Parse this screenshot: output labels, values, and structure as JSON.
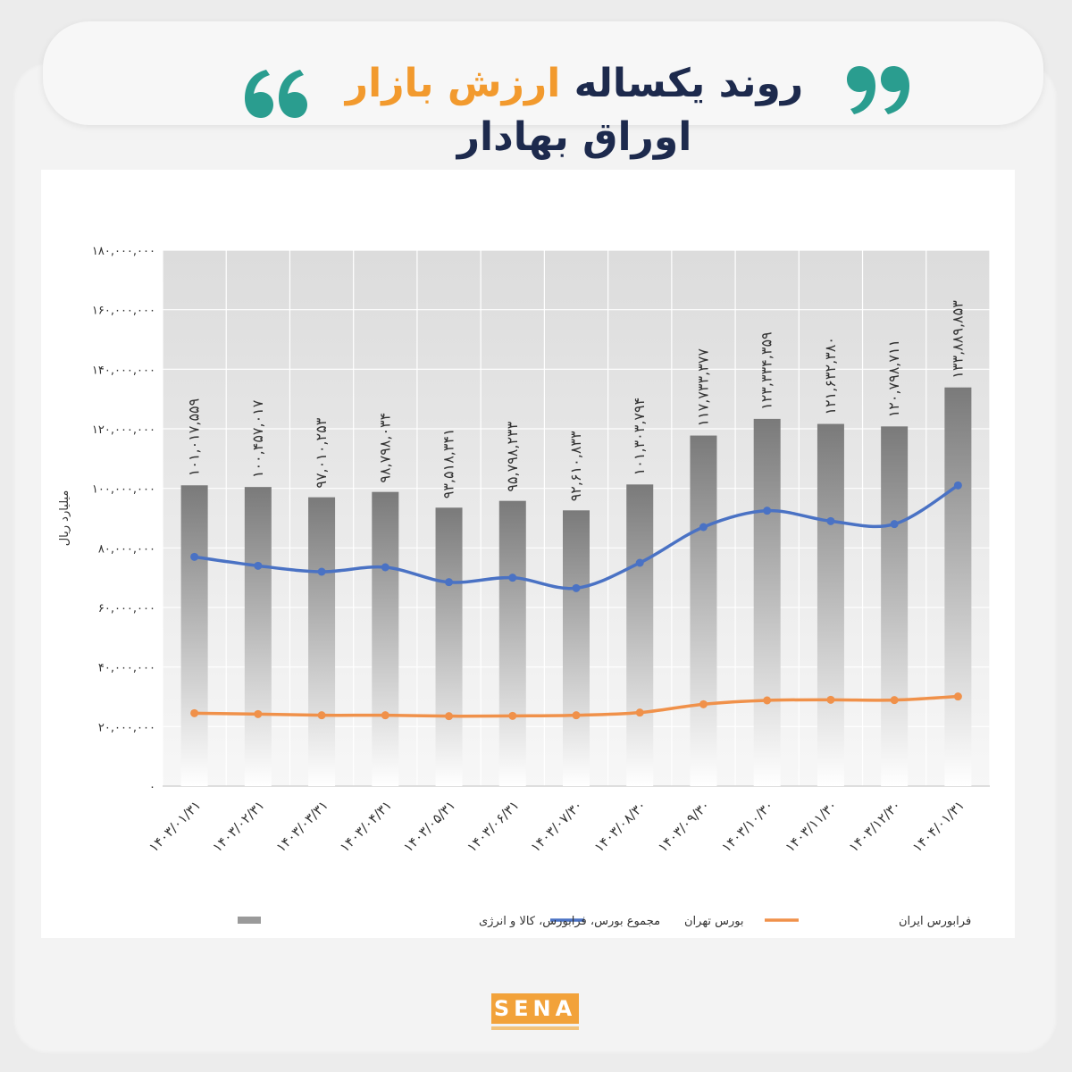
{
  "header": {
    "title_part1": "روند یکساله",
    "title_highlight": "ارزش بازار",
    "title_part2": "اوراق بهادار"
  },
  "colors": {
    "title_dark": "#1d2a4d",
    "title_highlight": "#f29a2e",
    "quote": "#2a9d8f",
    "bar_top": "#7a7a7a",
    "bar_bottom": "#ffffff",
    "line_tehran": "#4a72c4",
    "line_farabourse": "#f0914a"
  },
  "icons": {
    "left_quote": "quote-open-icon",
    "right_quote": "quote-close-icon"
  },
  "logo": {
    "text": "SENA"
  },
  "chart_data": {
    "type": "bar",
    "ylabel": "میلیارد ریال",
    "ylim": [
      0,
      180000000
    ],
    "yticks": [
      0,
      20000000,
      40000000,
      60000000,
      80000000,
      100000000,
      120000000,
      140000000,
      160000000,
      180000000
    ],
    "ytick_labels": [
      "۰",
      "۲۰,۰۰۰,۰۰۰",
      "۴۰,۰۰۰,۰۰۰",
      "۶۰,۰۰۰,۰۰۰",
      "۸۰,۰۰۰,۰۰۰",
      "۱۰۰,۰۰۰,۰۰۰",
      "۱۲۰,۰۰۰,۰۰۰",
      "۱۴۰,۰۰۰,۰۰۰",
      "۱۶۰,۰۰۰,۰۰۰",
      "۱۸۰,۰۰۰,۰۰۰"
    ],
    "categories": [
      "۱۴۰۳/۰۱/۳۱",
      "۱۴۰۳/۰۲/۳۱",
      "۱۴۰۳/۰۳/۳۱",
      "۱۴۰۳/۰۴/۳۱",
      "۱۴۰۳/۰۵/۳۱",
      "۱۴۰۳/۰۶/۳۱",
      "۱۴۰۳/۰۷/۳۰",
      "۱۴۰۳/۰۸/۳۰",
      "۱۴۰۳/۰۹/۳۰",
      "۱۴۰۳/۱۰/۳۰",
      "۱۴۰۳/۱۱/۳۰",
      "۱۴۰۳/۱۲/۳۰",
      "۱۴۰۴/۰۱/۳۱"
    ],
    "grid": true,
    "legend_position": "bottom",
    "series": [
      {
        "name": "مجموع بورس، فرابورس، کالا و انرژی",
        "kind": "bar",
        "values": [
          101017559,
          100457017,
          97010253,
          98798034,
          93518341,
          95798233,
          92610833,
          101303794,
          117733377,
          123334359,
          121632380,
          120798711,
          133889853
        ],
        "labels": [
          "۱۰۱,۰۱۷,۵۵۹",
          "۱۰۰,۴۵۷,۰۱۷",
          "۹۷,۰۱۰,۲۵۳",
          "۹۸,۷۹۸,۰۳۴",
          "۹۳,۵۱۸,۳۴۱",
          "۹۵,۷۹۸,۲۳۳",
          "۹۲,۶۱۰,۸۳۳",
          "۱۰۱,۳۰۳,۷۹۴",
          "۱۱۷,۷۳۳,۳۷۷",
          "۱۲۳,۳۳۴,۳۵۹",
          "۱۲۱,۶۳۲,۳۸۰",
          "۱۲۰,۷۹۸,۷۱۱",
          "۱۳۳,۸۸۹,۸۵۳"
        ]
      },
      {
        "name": "بورس تهران",
        "kind": "line",
        "values": [
          77000000,
          74000000,
          72000000,
          73500000,
          68500000,
          70000000,
          66500000,
          75000000,
          87000000,
          92500000,
          89000000,
          88000000,
          101000000
        ]
      },
      {
        "name": "فرابورس ایران",
        "kind": "line",
        "values": [
          24500000,
          24200000,
          23800000,
          23800000,
          23500000,
          23600000,
          23800000,
          24700000,
          27500000,
          28800000,
          29000000,
          28900000,
          30100000
        ]
      }
    ]
  }
}
